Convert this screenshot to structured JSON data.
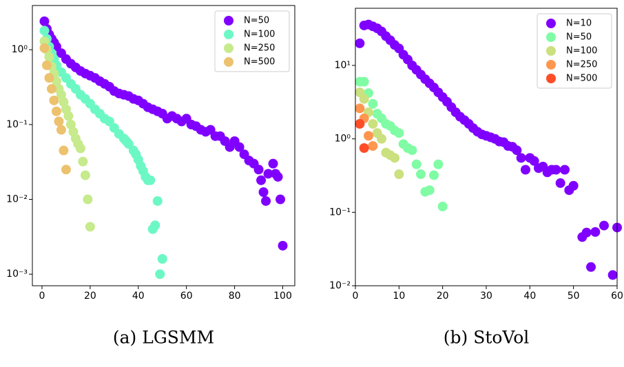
{
  "chart_data": [
    {
      "type": "scatter",
      "caption": "(a) LGSMM",
      "log_y": true,
      "legend": "upper right",
      "xlim": [
        -4,
        105
      ],
      "ylim": [
        0.0007,
        3.9
      ],
      "xticks": [
        0,
        20,
        40,
        60,
        80,
        100
      ],
      "yticks": [
        {
          "value": 1,
          "label": "10⁰"
        },
        {
          "value": 0.1,
          "label": "10⁻¹"
        },
        {
          "value": 0.01,
          "label": "10⁻²"
        },
        {
          "value": 0.001,
          "label": "10⁻³"
        }
      ],
      "series": [
        {
          "name": "N=50",
          "color": "#8000ff",
          "x": [
            1,
            2,
            3,
            4,
            5,
            6,
            8,
            10,
            12,
            14,
            16,
            18,
            20,
            22,
            24,
            26,
            28,
            30,
            32,
            34,
            36,
            38,
            40,
            42,
            44,
            46,
            48,
            50,
            52,
            54,
            56,
            58,
            60,
            62,
            64,
            66,
            68,
            70,
            72,
            74,
            76,
            78,
            80,
            82,
            84,
            86,
            88,
            90,
            91,
            92,
            93,
            94,
            96,
            97,
            98,
            99,
            100
          ],
          "values": [
            2.4,
            1.9,
            1.6,
            1.4,
            1.25,
            1.1,
            0.9,
            0.75,
            0.65,
            0.58,
            0.52,
            0.48,
            0.45,
            0.42,
            0.38,
            0.35,
            0.32,
            0.28,
            0.26,
            0.25,
            0.24,
            0.22,
            0.21,
            0.19,
            0.17,
            0.16,
            0.15,
            0.14,
            0.12,
            0.13,
            0.12,
            0.11,
            0.12,
            0.1,
            0.095,
            0.085,
            0.08,
            0.085,
            0.07,
            0.07,
            0.06,
            0.05,
            0.06,
            0.05,
            0.04,
            0.033,
            0.03,
            0.025,
            0.018,
            0.0125,
            0.0095,
            0.022,
            0.03,
            0.022,
            0.02,
            0.01,
            0.0024
          ]
        },
        {
          "name": "N=100",
          "color": "#6cf8c4",
          "x": [
            1,
            2,
            3,
            4,
            5,
            6,
            8,
            10,
            12,
            14,
            16,
            18,
            20,
            22,
            24,
            26,
            28,
            30,
            32,
            34,
            35,
            36,
            38,
            39,
            40,
            41,
            42,
            43,
            44,
            45,
            46,
            47,
            48,
            49,
            50
          ],
          "values": [
            1.8,
            1.4,
            1.1,
            0.9,
            0.75,
            0.62,
            0.5,
            0.42,
            0.35,
            0.3,
            0.25,
            0.22,
            0.19,
            0.16,
            0.14,
            0.12,
            0.11,
            0.09,
            0.075,
            0.065,
            0.06,
            0.055,
            0.045,
            0.04,
            0.034,
            0.028,
            0.024,
            0.02,
            0.018,
            0.018,
            0.004,
            0.0045,
            0.0095,
            0.001,
            0.0016
          ]
        },
        {
          "name": "N=250",
          "color": "#c6ea8c",
          "x": [
            1,
            2,
            3,
            4,
            5,
            6,
            7,
            8,
            9,
            10,
            11,
            12,
            13,
            14,
            15,
            16,
            17,
            18,
            19,
            20
          ],
          "values": [
            1.3,
            1.0,
            0.8,
            0.6,
            0.48,
            0.38,
            0.3,
            0.25,
            0.2,
            0.16,
            0.13,
            0.1,
            0.08,
            0.065,
            0.055,
            0.048,
            0.032,
            0.021,
            0.01,
            0.0043
          ]
        },
        {
          "name": "N=500",
          "color": "#ecc26e",
          "x": [
            1,
            2,
            3,
            4,
            5,
            6,
            7,
            8,
            9,
            10
          ],
          "values": [
            1.05,
            0.62,
            0.42,
            0.3,
            0.21,
            0.15,
            0.11,
            0.085,
            0.045,
            0.025
          ]
        }
      ]
    },
    {
      "type": "scatter",
      "caption": "(b) StoVol",
      "log_y": true,
      "legend": "upper right",
      "xlim": [
        0,
        60
      ],
      "ylim": [
        0.01,
        60
      ],
      "xticks": [
        0,
        10,
        20,
        30,
        40,
        50,
        60
      ],
      "yticks": [
        {
          "value": 10,
          "label": "10¹"
        },
        {
          "value": 1,
          "label": "10⁰"
        },
        {
          "value": 0.1,
          "label": "10⁻¹"
        },
        {
          "value": 0.01,
          "label": "10⁻²"
        }
      ],
      "series": [
        {
          "name": "N=10",
          "color": "#8000ff",
          "x": [
            1,
            2,
            3,
            4,
            5,
            6,
            7,
            8,
            9,
            10,
            11,
            12,
            13,
            14,
            15,
            16,
            17,
            18,
            19,
            20,
            21,
            22,
            23,
            24,
            25,
            26,
            27,
            28,
            29,
            30,
            31,
            32,
            33,
            34,
            35,
            36,
            37,
            38,
            39,
            40,
            41,
            42,
            43,
            44,
            45,
            46,
            47,
            48,
            49,
            50,
            52,
            53,
            54,
            55,
            57,
            59,
            60
          ],
          "values": [
            20,
            35,
            36,
            34,
            32,
            29,
            25,
            22,
            19,
            17,
            14,
            12,
            10,
            8.7,
            7.5,
            6.5,
            5.7,
            5.0,
            4.3,
            3.7,
            3.2,
            2.7,
            2.3,
            2.0,
            1.8,
            1.6,
            1.4,
            1.25,
            1.15,
            1.1,
            1.05,
            1.0,
            0.92,
            0.9,
            0.8,
            0.78,
            0.7,
            0.55,
            0.38,
            0.55,
            0.5,
            0.4,
            0.42,
            0.35,
            0.38,
            0.38,
            0.25,
            0.38,
            0.2,
            0.23,
            0.046,
            0.053,
            0.018,
            0.054,
            0.066,
            0.014,
            0.062
          ]
        },
        {
          "name": "N=50",
          "color": "#80fca4",
          "x": [
            1,
            2,
            3,
            4,
            5,
            6,
            7,
            8,
            9,
            10,
            11,
            12,
            13,
            14,
            15,
            16,
            17,
            18,
            19,
            20
          ],
          "values": [
            6.0,
            6.0,
            4.2,
            3.0,
            2.2,
            1.9,
            1.6,
            1.5,
            1.3,
            1.2,
            0.85,
            0.75,
            0.7,
            0.45,
            0.33,
            0.19,
            0.2,
            0.32,
            0.45,
            0.12
          ]
        },
        {
          "name": "N=100",
          "color": "#cbe07e",
          "x": [
            1,
            2,
            3,
            4,
            5,
            6,
            7,
            8,
            9,
            10
          ],
          "values": [
            4.3,
            3.5,
            2.3,
            1.6,
            1.2,
            1.0,
            0.65,
            0.6,
            0.55,
            0.33
          ]
        },
        {
          "name": "N=250",
          "color": "#ff9650",
          "x": [
            1,
            2,
            3,
            4
          ],
          "values": [
            2.6,
            1.9,
            1.1,
            0.8
          ]
        },
        {
          "name": "N=500",
          "color": "#ff4d28",
          "x": [
            1,
            2
          ],
          "values": [
            1.6,
            0.75
          ]
        }
      ]
    }
  ]
}
